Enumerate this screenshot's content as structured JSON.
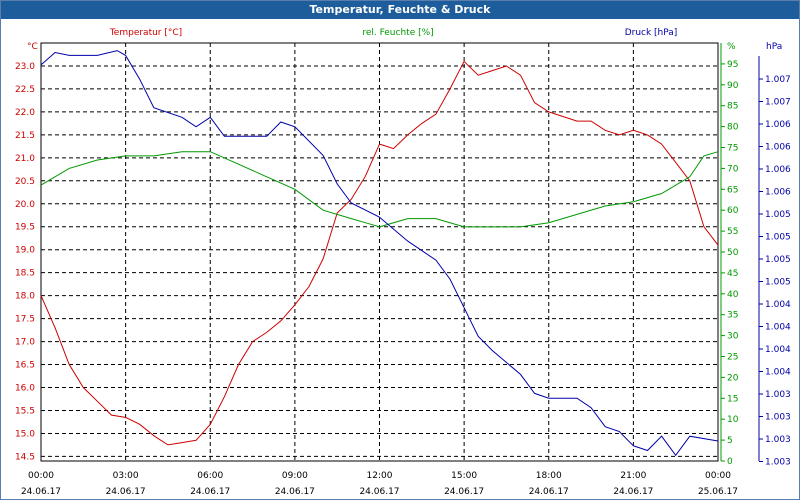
{
  "title": "Temperatur, Feuchte & Druck",
  "colors": {
    "temperature": "#cc0000",
    "humidity": "#009900",
    "pressure": "#0000aa",
    "grid": "#000000",
    "title_bar": "#1d5d9b"
  },
  "chart_data": {
    "type": "line",
    "title": "Temperatur, Feuchte & Druck",
    "axes": {
      "left": {
        "label": "Temperatur [°C]",
        "unit": "°C",
        "range": [
          14.4,
          23.5
        ],
        "ticks": [
          "23.0",
          "22.5",
          "22.0",
          "21.5",
          "21.0",
          "20.5",
          "20.0",
          "19.5",
          "19.0",
          "18.5",
          "18.0",
          "17.5",
          "17.0",
          "16.5",
          "16.0",
          "15.5",
          "15.0",
          "14.5"
        ]
      },
      "humidity": {
        "label": "rel. Feuchte [%]",
        "unit": "%",
        "range": [
          0,
          100
        ],
        "ticks": [
          "95",
          "90",
          "85",
          "80",
          "75",
          "70",
          "65",
          "60",
          "55",
          "50",
          "45",
          "40",
          "35",
          "30",
          "25",
          "20",
          "15",
          "10",
          "5",
          "0"
        ]
      },
      "pressure": {
        "label": "Druck [hPa]",
        "unit": "hPa",
        "range": [
          1002.89,
          1007.28
        ],
        "ticks": [
          "1.007",
          "1.007",
          "1.006",
          "1.006",
          "1.006",
          "1.006",
          "1.005",
          "1.005",
          "1.005",
          "1.005",
          "1.004",
          "1.004",
          "1.004",
          "1.004",
          "1.003",
          "1.003",
          "1.003",
          "1.003"
        ]
      },
      "x": {
        "ticks": [
          {
            "time": "00:00",
            "date": "24.06.17"
          },
          {
            "time": "03:00",
            "date": "24.06.17"
          },
          {
            "time": "06:00",
            "date": "24.06.17"
          },
          {
            "time": "09:00",
            "date": "24.06.17"
          },
          {
            "time": "12:00",
            "date": "24.06.17"
          },
          {
            "time": "15:00",
            "date": "24.06.17"
          },
          {
            "time": "18:00",
            "date": "24.06.17"
          },
          {
            "time": "21:00",
            "date": "24.06.17"
          },
          {
            "time": "00:00",
            "date": "25.06.17"
          }
        ]
      }
    },
    "series": [
      {
        "name": "Temperatur",
        "unit": "°C",
        "points": [
          [
            0,
            18.0
          ],
          [
            0.5,
            17.3
          ],
          [
            1,
            16.5
          ],
          [
            1.5,
            16.0
          ],
          [
            2,
            15.7
          ],
          [
            2.5,
            15.4
          ],
          [
            3,
            15.35
          ],
          [
            3.5,
            15.2
          ],
          [
            4,
            14.95
          ],
          [
            4.5,
            14.75
          ],
          [
            5,
            14.8
          ],
          [
            5.5,
            14.85
          ],
          [
            6,
            15.2
          ],
          [
            6.5,
            15.8
          ],
          [
            7,
            16.5
          ],
          [
            7.5,
            17.0
          ],
          [
            8,
            17.2
          ],
          [
            8.5,
            17.45
          ],
          [
            9,
            17.8
          ],
          [
            9.5,
            18.2
          ],
          [
            10,
            18.8
          ],
          [
            10.5,
            19.8
          ],
          [
            11,
            20.1
          ],
          [
            11.5,
            20.6
          ],
          [
            12,
            21.3
          ],
          [
            12.5,
            21.2
          ],
          [
            13,
            21.5
          ],
          [
            13.5,
            21.75
          ],
          [
            14,
            21.95
          ],
          [
            14.5,
            22.5
          ],
          [
            15,
            23.1
          ],
          [
            15.5,
            22.8
          ],
          [
            16,
            22.9
          ],
          [
            16.5,
            23.0
          ],
          [
            17,
            22.8
          ],
          [
            17.5,
            22.2
          ],
          [
            18,
            22.0
          ],
          [
            18.5,
            21.9
          ],
          [
            19,
            21.8
          ],
          [
            19.5,
            21.8
          ],
          [
            20,
            21.6
          ],
          [
            20.5,
            21.5
          ],
          [
            21,
            21.6
          ],
          [
            21.5,
            21.5
          ],
          [
            22,
            21.3
          ],
          [
            22.5,
            20.9
          ],
          [
            23,
            20.5
          ],
          [
            23.5,
            19.5
          ],
          [
            24,
            19.1
          ]
        ]
      },
      {
        "name": "rel. Feuchte",
        "unit": "%",
        "points": [
          [
            0,
            66
          ],
          [
            1,
            70
          ],
          [
            2,
            72
          ],
          [
            3,
            73
          ],
          [
            4,
            73
          ],
          [
            5,
            74
          ],
          [
            6,
            74
          ],
          [
            7,
            71
          ],
          [
            8,
            68
          ],
          [
            9,
            65
          ],
          [
            10,
            60
          ],
          [
            11,
            58
          ],
          [
            11.5,
            57
          ],
          [
            12,
            56
          ],
          [
            13,
            58
          ],
          [
            14,
            58
          ],
          [
            15,
            56
          ],
          [
            16,
            56
          ],
          [
            17,
            56
          ],
          [
            18,
            57
          ],
          [
            19,
            59
          ],
          [
            20,
            61
          ],
          [
            21,
            62
          ],
          [
            22,
            64
          ],
          [
            23,
            68
          ],
          [
            23.5,
            73
          ],
          [
            24,
            74
          ]
        ]
      },
      {
        "name": "Druck",
        "unit": "hPa",
        "points": [
          [
            0,
            1007.05
          ],
          [
            0.5,
            1007.18
          ],
          [
            1,
            1007.15
          ],
          [
            2,
            1007.15
          ],
          [
            2.7,
            1007.2
          ],
          [
            3,
            1007.15
          ],
          [
            3.5,
            1006.9
          ],
          [
            4,
            1006.6
          ],
          [
            5,
            1006.5
          ],
          [
            5.5,
            1006.4
          ],
          [
            6,
            1006.5
          ],
          [
            6.5,
            1006.3
          ],
          [
            7,
            1006.3
          ],
          [
            8,
            1006.3
          ],
          [
            8.5,
            1006.45
          ],
          [
            9,
            1006.4
          ],
          [
            10,
            1006.1
          ],
          [
            10.5,
            1005.8
          ],
          [
            11,
            1005.6
          ],
          [
            12,
            1005.45
          ],
          [
            13,
            1005.2
          ],
          [
            14,
            1005.0
          ],
          [
            14.5,
            1004.8
          ],
          [
            15,
            1004.5
          ],
          [
            15.5,
            1004.2
          ],
          [
            16,
            1004.05
          ],
          [
            17,
            1003.8
          ],
          [
            17.5,
            1003.6
          ],
          [
            18,
            1003.55
          ],
          [
            19,
            1003.55
          ],
          [
            19.5,
            1003.45
          ],
          [
            20,
            1003.25
          ],
          [
            20.5,
            1003.2
          ],
          [
            21,
            1003.05
          ],
          [
            21.5,
            1003.0
          ],
          [
            22,
            1003.15
          ],
          [
            22.5,
            1002.95
          ],
          [
            23,
            1003.15
          ],
          [
            24,
            1003.1
          ]
        ]
      }
    ]
  }
}
